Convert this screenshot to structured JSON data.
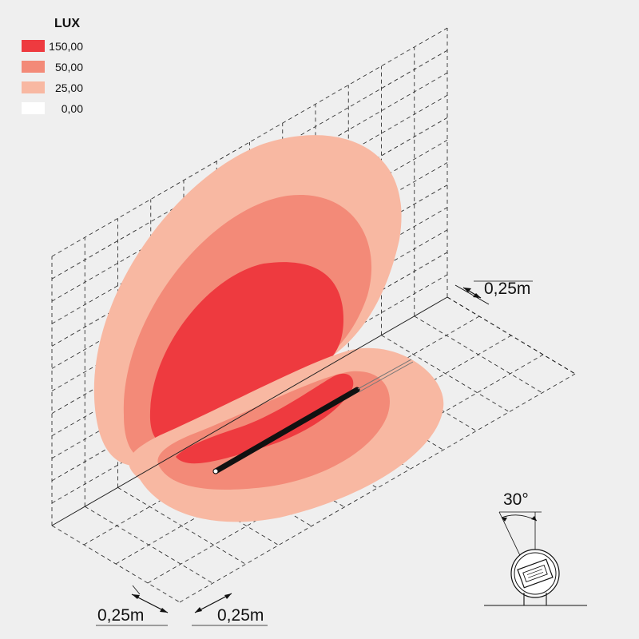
{
  "legend": {
    "title": "LUX",
    "entries": [
      {
        "label": "150,00",
        "color": "#ee3a3f"
      },
      {
        "label": "50,00",
        "color": "#f38a78"
      },
      {
        "label": "25,00",
        "color": "#f8b8a2"
      },
      {
        "label": "0,00",
        "color": "#ffffff"
      }
    ]
  },
  "dimensions": {
    "depth_label": "0,25m",
    "grid_left_label": "0,25m",
    "grid_right_label": "0,25m"
  },
  "beam_inset": {
    "angle_label": "30°"
  }
}
